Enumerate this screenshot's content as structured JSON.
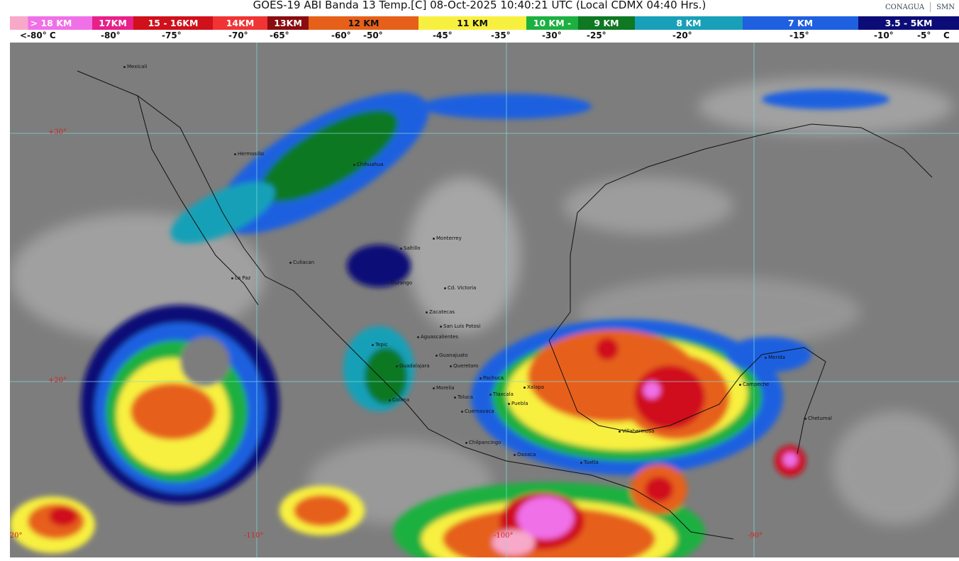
{
  "header": {
    "title": "GOES-19 ABI Banda 13 Temp.[C] 08-Oct-2025 10:40:21 UTC (Local CDMX  04:40 Hrs.)",
    "logos": [
      "CONAGUA",
      "SMN"
    ]
  },
  "legend": {
    "segments": [
      {
        "label": "> 18 KM",
        "color": "#f070e8"
      },
      {
        "label": "17KM",
        "color": "#e8208a"
      },
      {
        "label": "15 - 16KM",
        "color": "#d0101a"
      },
      {
        "label": "14KM",
        "color": "#f03434"
      },
      {
        "label": "13KM",
        "color": "#8a0c10"
      },
      {
        "label": "12 KM",
        "color": "#e6601a"
      },
      {
        "label": "11 KM",
        "color": "#f8f040"
      },
      {
        "label": "10 KM -",
        "color": "#1cb040"
      },
      {
        "label": "9 KM",
        "color": "#0e7822"
      },
      {
        "label": "8 KM",
        "color": "#18a0b8"
      },
      {
        "label": "7 KM",
        "color": "#1e60e0"
      },
      {
        "label": "3.5 - 5KM",
        "color": "#0c0c78"
      }
    ],
    "temps": [
      "<-80° C",
      "-80°",
      "-75°",
      "-70°",
      "-65°",
      "-60°",
      "-50°",
      "-45°",
      "-35°",
      "-30°",
      "-25°",
      "-20°",
      "-15°",
      "-10°",
      "-5°",
      "C"
    ]
  },
  "map": {
    "cities": [
      "Mexicali",
      "Hermosillo",
      "Chihuahua",
      "Monterrey",
      "Saltillo",
      "Culiacan",
      "La Paz",
      "Durango",
      "Cd. Victoria",
      "Zacatecas",
      "San Luis Potosi",
      "Aguascalientes",
      "Tepic",
      "Guanajuato",
      "Guadalajara",
      "Queretaro",
      "Pachuca",
      "Morelia",
      "Toluca",
      "Tlaxcala",
      "Xalapa",
      "Puebla",
      "Colima",
      "Cuernavaca",
      "Chilpancingo",
      "Oaxaca",
      "Villahermosa",
      "Tuxtla",
      "Merida",
      "Campeche",
      "Chetumal"
    ],
    "lat_labels": [
      "+30°",
      "+20°"
    ],
    "lon_labels": [
      "-120°",
      "-110°",
      "-100°",
      "-90°"
    ]
  }
}
